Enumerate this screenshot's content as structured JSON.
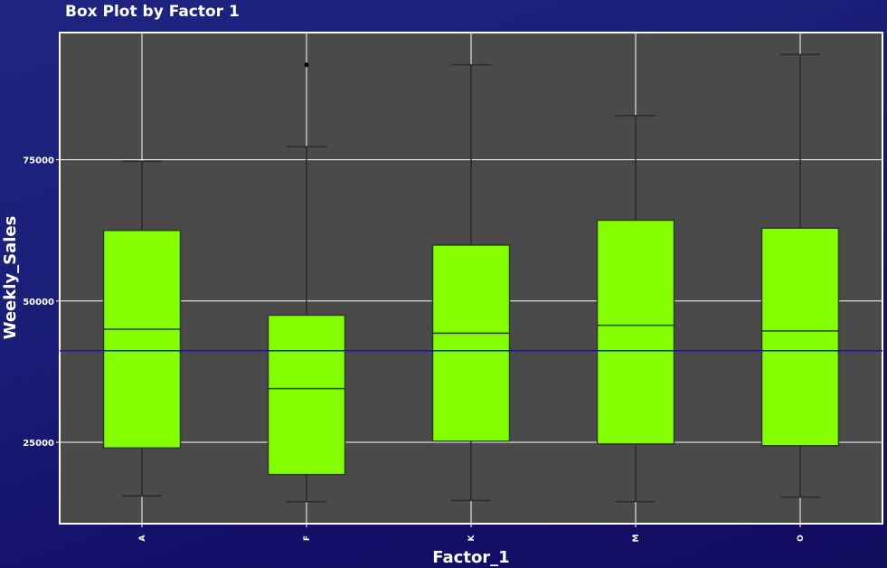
{
  "chart_data": {
    "type": "box",
    "title": "Box Plot by Factor 1",
    "xlabel": "Factor_1",
    "ylabel": "Weekly_Sales",
    "categories": [
      "A",
      "F",
      "K",
      "M",
      "O"
    ],
    "boxes": [
      {
        "category": "A",
        "whisker_low": 15500,
        "q1": 24000,
        "median": 45000,
        "q3": 62500,
        "whisker_high": 74700,
        "outliers": []
      },
      {
        "category": "F",
        "whisker_low": 14500,
        "q1": 19300,
        "median": 34500,
        "q3": 47500,
        "whisker_high": 77300,
        "outliers": [
          91800
        ]
      },
      {
        "category": "K",
        "whisker_low": 14700,
        "q1": 25200,
        "median": 44300,
        "q3": 59900,
        "whisker_high": 91800,
        "outliers": []
      },
      {
        "category": "M",
        "whisker_low": 14500,
        "q1": 24700,
        "median": 45700,
        "q3": 64300,
        "whisker_high": 82800,
        "outliers": []
      },
      {
        "category": "O",
        "whisker_low": 15300,
        "q1": 24400,
        "median": 44700,
        "q3": 62900,
        "whisker_high": 93600,
        "outliers": []
      }
    ],
    "reference_line": 41200,
    "yticks": [
      25000,
      50000,
      75000
    ],
    "ytick_labels": [
      "25000",
      "50000",
      "75000"
    ],
    "ylim": [
      10600,
      97500
    ],
    "grid": true,
    "colors": {
      "background": "#1a1f78",
      "panel": "#4a4a4a",
      "box_fill": "#84ff00",
      "box_stroke": "#2a3a1a",
      "whisker": "#2b2b2b",
      "grid": "#ffffff",
      "reference_line": "#1010e0",
      "text": "#ffffff"
    }
  }
}
